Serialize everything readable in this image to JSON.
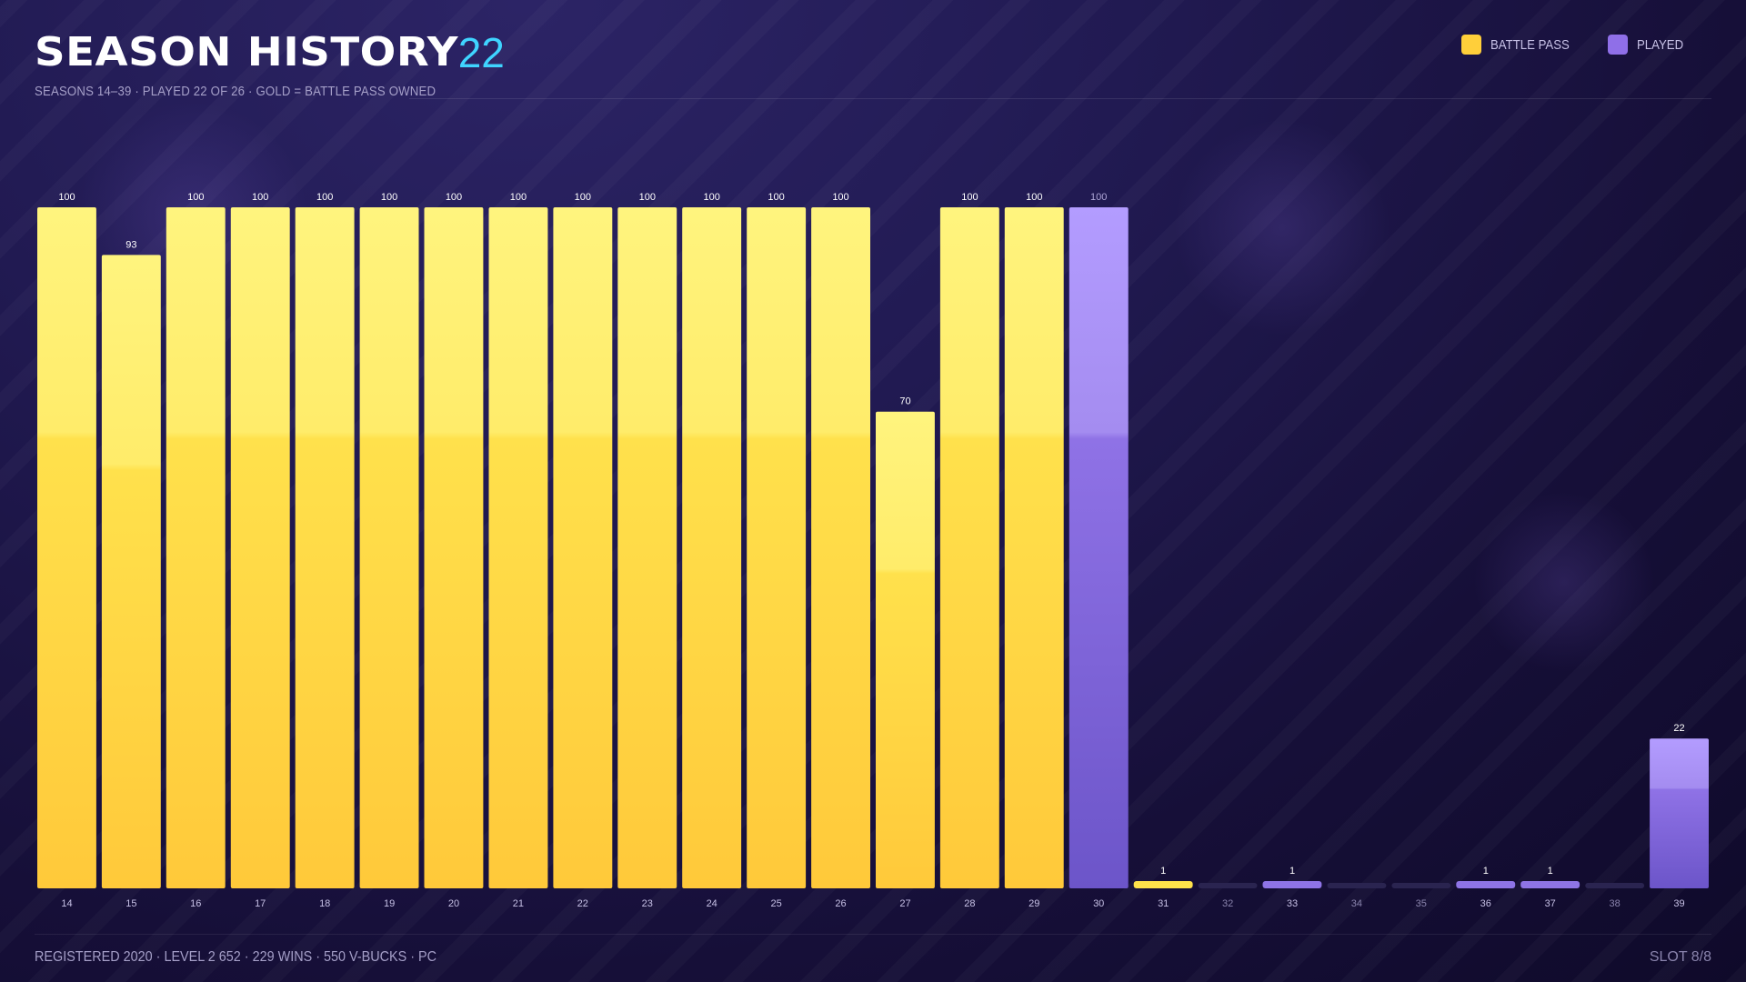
{
  "header": {
    "title": "SEASON HISTORY",
    "count": "22",
    "subtitle": "SEASONS 14–39 · PLAYED 22 OF 26 · GOLD = BATTLE PASS OWNED"
  },
  "legend": [
    {
      "label": "BATTLE PASS",
      "color": "#ffd23f"
    },
    {
      "label": "PLAYED",
      "color": "#8f6fe8"
    }
  ],
  "footer": {
    "info": "REGISTERED 2020 · LEVEL 2 652 · 229 WINS · 550 V-BUCKS · PC",
    "slot": "SLOT 8/8"
  },
  "chart_data": {
    "type": "bar",
    "title": "SEASON HISTORY",
    "categories": [
      "14",
      "15",
      "16",
      "17",
      "18",
      "19",
      "20",
      "21",
      "22",
      "23",
      "24",
      "25",
      "26",
      "27",
      "28",
      "29",
      "30",
      "31",
      "32",
      "33",
      "34",
      "35",
      "36",
      "37",
      "38",
      "39"
    ],
    "values": [
      100,
      93,
      100,
      100,
      100,
      100,
      100,
      100,
      100,
      100,
      100,
      100,
      100,
      70,
      100,
      100,
      100,
      1,
      0,
      1,
      0,
      0,
      1,
      1,
      0,
      22
    ],
    "battle_pass": [
      true,
      true,
      true,
      true,
      true,
      true,
      true,
      true,
      true,
      true,
      true,
      true,
      true,
      true,
      true,
      true,
      false,
      true,
      false,
      false,
      false,
      false,
      false,
      false,
      false,
      false
    ],
    "played": [
      true,
      true,
      true,
      true,
      true,
      true,
      true,
      true,
      true,
      true,
      true,
      true,
      true,
      true,
      true,
      true,
      true,
      true,
      false,
      true,
      false,
      false,
      true,
      true,
      false,
      true
    ],
    "ylim": [
      0,
      100
    ],
    "grid": false,
    "legend_position": "top-right",
    "colors": {
      "battle_pass_top": "#fff27a",
      "battle_pass_bottom": "#ffc93a",
      "played_top": "#b29bff",
      "played_bottom": "#6e55cc",
      "unplayed": "#2a2450",
      "label_played": "#ffffff",
      "label_unplayed": "#8a84ad",
      "label_bar30": "#b0a8d8"
    }
  }
}
